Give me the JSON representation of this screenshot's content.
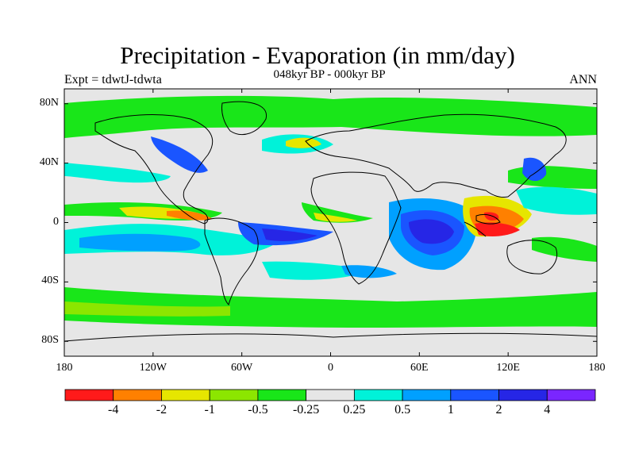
{
  "header": {
    "title": "Precipitation - Evaporation (in mm/day)",
    "subtitle": "048kyr BP - 000kyr BP",
    "left_label": "Expt = tdwtJ-tdwta",
    "right_label": "ANN"
  },
  "map": {
    "lat_ticks": [
      {
        "label": "80N",
        "lat": 80
      },
      {
        "label": "40N",
        "lat": 40
      },
      {
        "label": "0",
        "lat": 0
      },
      {
        "label": "40S",
        "lat": -40
      },
      {
        "label": "80S",
        "lat": -80
      }
    ],
    "lon_ticks": [
      {
        "label": "180",
        "lon": -180
      },
      {
        "label": "120W",
        "lon": -120
      },
      {
        "label": "60W",
        "lon": -60
      },
      {
        "label": "0",
        "lon": 0
      },
      {
        "label": "60E",
        "lon": 60
      },
      {
        "label": "120E",
        "lon": 120
      },
      {
        "label": "180",
        "lon": 180
      }
    ],
    "lat_range": [
      -90,
      90
    ],
    "lon_range": [
      -180,
      180
    ]
  },
  "colorbar": {
    "colors": [
      "#ff1a1a",
      "#ff8000",
      "#e6e600",
      "#8ce600",
      "#19e619",
      "#e6e6e6",
      "#00f2d9",
      "#00a0ff",
      "#1a55ff",
      "#2626e6",
      "#7a26ff"
    ],
    "labels": [
      "-4",
      "-2",
      "-1",
      "-0.5",
      "-0.25",
      "0.25",
      "0.5",
      "1",
      "2",
      "4"
    ]
  }
}
